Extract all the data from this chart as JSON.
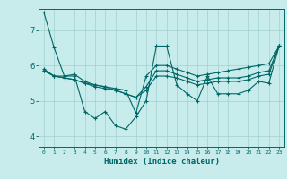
{
  "xlabel": "Humidex (Indice chaleur)",
  "ylabel": "",
  "bg_color": "#c8ecec",
  "line_color": "#006666",
  "grid_color": "#a0d0d0",
  "xlim": [
    -0.5,
    23.5
  ],
  "ylim": [
    3.7,
    7.6
  ],
  "yticks": [
    4,
    5,
    6,
    7
  ],
  "xticks": [
    0,
    1,
    2,
    3,
    4,
    5,
    6,
    7,
    8,
    9,
    10,
    11,
    12,
    13,
    14,
    15,
    16,
    17,
    18,
    19,
    20,
    21,
    22,
    23
  ],
  "series": [
    [
      7.5,
      6.5,
      5.7,
      5.7,
      4.7,
      4.5,
      4.7,
      4.3,
      4.2,
      4.55,
      5.0,
      6.55,
      6.55,
      5.45,
      5.2,
      5.0,
      5.7,
      5.2,
      5.2,
      5.2,
      5.3,
      5.55,
      5.5,
      6.55
    ],
    [
      5.9,
      5.7,
      5.7,
      5.75,
      5.55,
      5.45,
      5.4,
      5.35,
      5.3,
      4.65,
      5.7,
      6.0,
      6.0,
      5.9,
      5.8,
      5.7,
      5.75,
      5.8,
      5.85,
      5.9,
      5.95,
      6.0,
      6.05,
      6.55
    ],
    [
      5.85,
      5.7,
      5.65,
      5.6,
      5.5,
      5.45,
      5.4,
      5.3,
      5.2,
      5.1,
      5.4,
      5.85,
      5.85,
      5.75,
      5.65,
      5.55,
      5.6,
      5.65,
      5.65,
      5.65,
      5.7,
      5.8,
      5.85,
      6.55
    ],
    [
      5.85,
      5.7,
      5.65,
      5.6,
      5.5,
      5.4,
      5.35,
      5.3,
      5.2,
      5.1,
      5.3,
      5.7,
      5.7,
      5.65,
      5.55,
      5.45,
      5.5,
      5.55,
      5.55,
      5.55,
      5.6,
      5.7,
      5.75,
      6.55
    ]
  ]
}
